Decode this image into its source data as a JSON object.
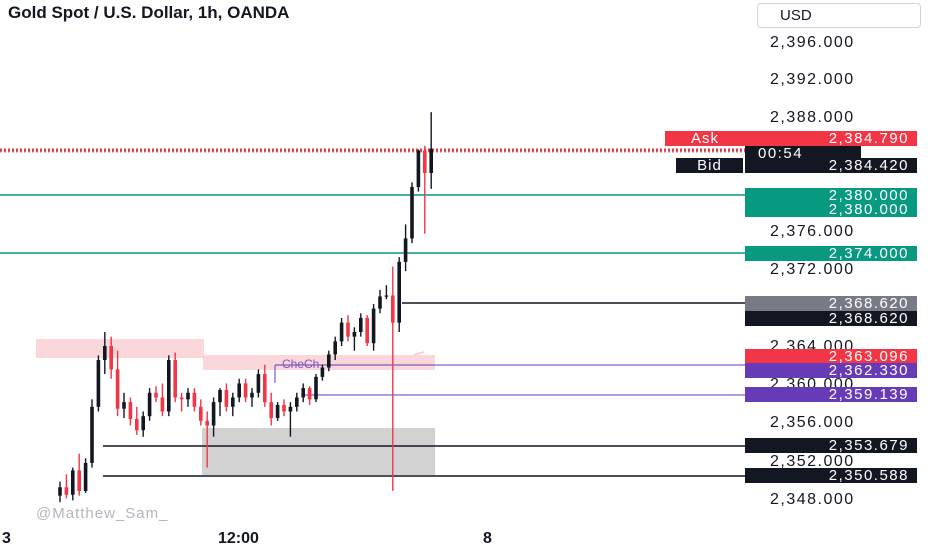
{
  "header": {
    "title": "Gold Spot / U.S. Dollar, 1h, OANDA",
    "currency": "USD"
  },
  "price_axis": {
    "ticks": [
      "2,396.000",
      "2,392.000",
      "2,388.000",
      "2,376.000",
      "2,372.000",
      "2,364.000",
      "2,360.000",
      "2,356.000",
      "2,352.000",
      "2,348.000"
    ]
  },
  "time_axis": {
    "ticks": [
      "3",
      "12:00",
      "8"
    ]
  },
  "price_labels": {
    "ask_tag": "Ask",
    "ask_price": "2,384.790",
    "countdown": "00:54",
    "bid_tag": "Bid",
    "bid_price": "2,384.420",
    "level_380_a": "2,380.000",
    "level_380_b": "2,380.000",
    "level_374": "2,374.000",
    "level_368_gray": "2,368.620",
    "level_368_black": "2,368.620",
    "level_363": "2,363.096",
    "level_362": "2,362.330",
    "level_359": "2,359.139",
    "level_353": "2,353.679",
    "level_350": "2,350.588"
  },
  "annotation": "CheCh",
  "watermark": "@Matthew_Sam_",
  "colors": {
    "up": "#131722",
    "down": "#f23645",
    "teal": "#089981",
    "purple": "#673ab7",
    "gray_label": "#787b86",
    "pink_zone": "#f8c9cd",
    "gray_zone": "#d0d0d0"
  },
  "chart_data": {
    "type": "candlestick",
    "symbol": "XAUUSD",
    "timeframe": "1h",
    "price_range": [
      2347,
      2399
    ],
    "horizontal_levels": [
      2384.79,
      2384.42,
      2380.0,
      2374.0,
      2368.62,
      2363.096,
      2362.33,
      2359.139,
      2353.679,
      2350.588
    ],
    "candles": [
      [
        2347.5,
        2349.0,
        2346.8,
        2348.4
      ],
      [
        2348.4,
        2349.8,
        2347.2,
        2347.6
      ],
      [
        2347.6,
        2350.5,
        2347.0,
        2350.2
      ],
      [
        2350.2,
        2352.0,
        2347.5,
        2348.0
      ],
      [
        2348.0,
        2351.5,
        2347.8,
        2351.0
      ],
      [
        2351.0,
        2357.8,
        2350.5,
        2357.0
      ],
      [
        2357.0,
        2362.5,
        2356.5,
        2362.0
      ],
      [
        2362.0,
        2365.0,
        2360.5,
        2363.5
      ],
      [
        2363.5,
        2364.5,
        2360.0,
        2361.0
      ],
      [
        2361.0,
        2363.0,
        2356.0,
        2356.8
      ],
      [
        2356.8,
        2358.5,
        2355.8,
        2357.5
      ],
      [
        2357.5,
        2358.0,
        2355.0,
        2355.7
      ],
      [
        2355.7,
        2357.0,
        2354.0,
        2354.5
      ],
      [
        2354.5,
        2356.5,
        2353.8,
        2356.0
      ],
      [
        2356.0,
        2359.0,
        2355.5,
        2358.5
      ],
      [
        2358.5,
        2359.2,
        2357.5,
        2358.0
      ],
      [
        2358.0,
        2359.5,
        2356.0,
        2356.5
      ],
      [
        2356.5,
        2362.5,
        2356.0,
        2362.0
      ],
      [
        2362.0,
        2362.8,
        2357.5,
        2358.0
      ],
      [
        2358.0,
        2358.5,
        2356.5,
        2357.8
      ],
      [
        2357.8,
        2359.0,
        2357.0,
        2358.5
      ],
      [
        2358.5,
        2359.0,
        2356.5,
        2357.0
      ],
      [
        2357.0,
        2357.8,
        2355.0,
        2355.5
      ],
      [
        2355.5,
        2356.5,
        2350.5,
        2355.0
      ],
      [
        2355.0,
        2358.0,
        2353.8,
        2357.5
      ],
      [
        2357.5,
        2359.0,
        2356.0,
        2358.8
      ],
      [
        2358.8,
        2359.5,
        2356.5,
        2357.0
      ],
      [
        2357.0,
        2358.5,
        2356.0,
        2358.0
      ],
      [
        2358.0,
        2360.0,
        2357.5,
        2359.5
      ],
      [
        2359.5,
        2360.0,
        2357.5,
        2358.0
      ],
      [
        2358.0,
        2359.0,
        2357.0,
        2358.5
      ],
      [
        2358.5,
        2361.0,
        2358.0,
        2360.5
      ],
      [
        2360.5,
        2361.5,
        2357.0,
        2357.5
      ],
      [
        2357.5,
        2358.5,
        2355.0,
        2355.8
      ],
      [
        2355.8,
        2357.5,
        2355.5,
        2357.2
      ],
      [
        2357.2,
        2357.8,
        2356.0,
        2356.5
      ],
      [
        2356.5,
        2357.5,
        2353.8,
        2357.0
      ],
      [
        2357.0,
        2358.5,
        2356.5,
        2358.0
      ],
      [
        2358.0,
        2359.5,
        2357.5,
        2359.0
      ],
      [
        2359.0,
        2359.2,
        2357.2,
        2357.8
      ],
      [
        2357.8,
        2360.5,
        2357.5,
        2360.2
      ],
      [
        2360.2,
        2361.5,
        2359.8,
        2361.2
      ],
      [
        2361.2,
        2363.0,
        2360.8,
        2362.6
      ],
      [
        2362.6,
        2364.5,
        2362.0,
        2364.0
      ],
      [
        2364.0,
        2366.5,
        2363.5,
        2366.0
      ],
      [
        2366.0,
        2366.8,
        2364.0,
        2364.5
      ],
      [
        2364.5,
        2365.5,
        2363.0,
        2365.0
      ],
      [
        2365.0,
        2367.0,
        2364.5,
        2366.5
      ],
      [
        2366.5,
        2366.8,
        2363.5,
        2363.8
      ],
      [
        2363.8,
        2368.0,
        2363.0,
        2367.5
      ],
      [
        2367.5,
        2369.5,
        2367.0,
        2368.8
      ],
      [
        2368.8,
        2370.0,
        2368.5,
        2368.9
      ],
      [
        2368.9,
        2372.0,
        2348.0,
        2366.0
      ],
      [
        2366.0,
        2373.0,
        2365.0,
        2372.5
      ],
      [
        2372.5,
        2376.5,
        2371.5,
        2375.0
      ],
      [
        2375.0,
        2381.0,
        2374.5,
        2380.5
      ],
      [
        2380.5,
        2384.5,
        2380.0,
        2384.4
      ],
      [
        2384.4,
        2384.9,
        2375.5,
        2382.0
      ],
      [
        2382.0,
        2388.5,
        2380.3,
        2384.6
      ]
    ]
  }
}
